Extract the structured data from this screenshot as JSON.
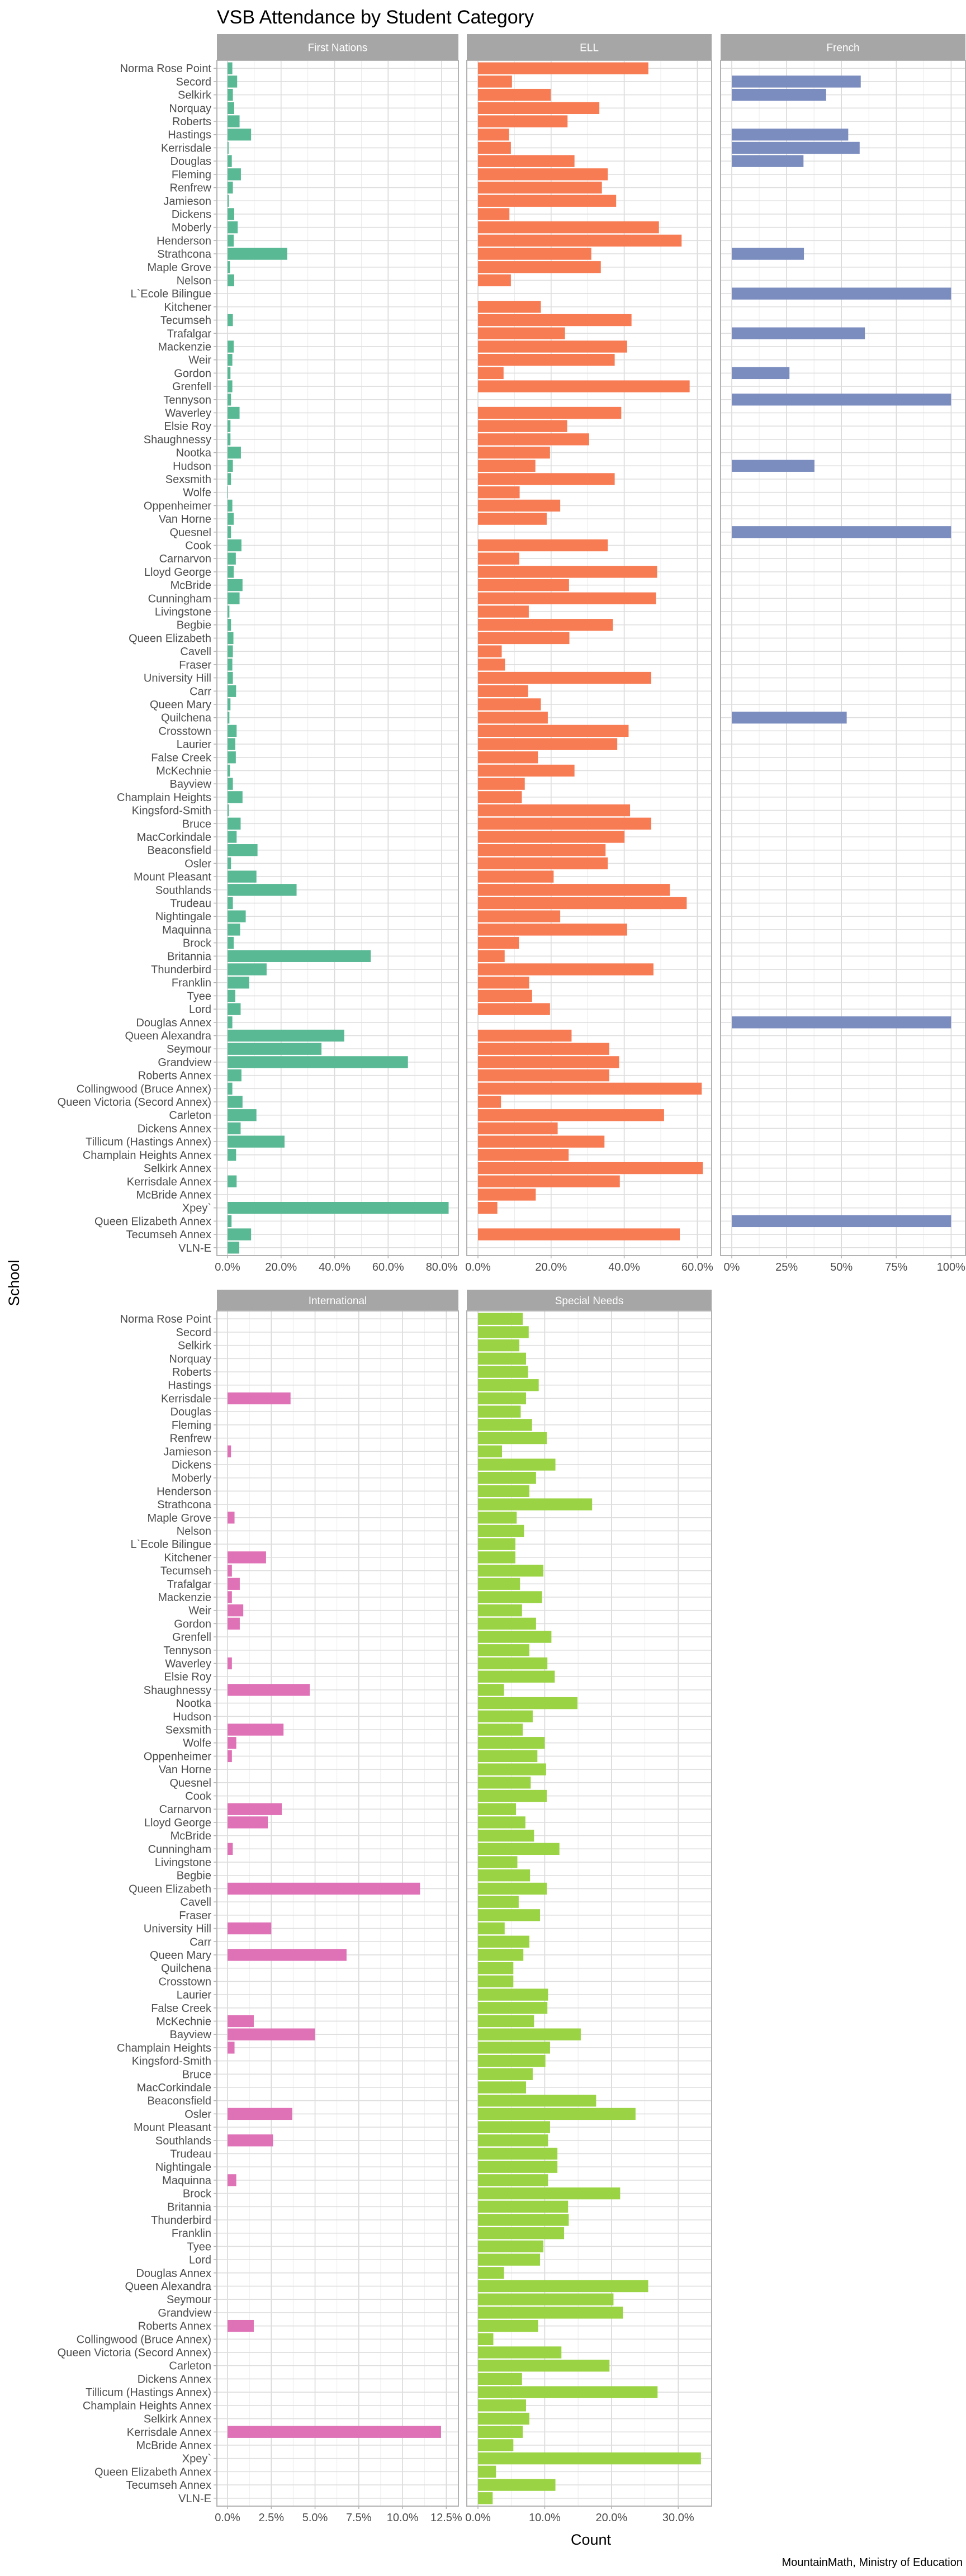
{
  "chart_data": {
    "type": "bar",
    "orientation": "horizontal",
    "title": "VSB Attendance by Student Category",
    "xlabel": "Count",
    "ylabel": "School",
    "caption": "MountainMath, Ministry of Education",
    "grid": true,
    "facet_layout": "3 columns, 2 rows",
    "categories": [
      "Norma Rose Point",
      "Secord",
      "Selkirk",
      "Norquay",
      "Roberts",
      "Hastings",
      "Kerrisdale",
      "Douglas",
      "Fleming",
      "Renfrew",
      "Jamieson",
      "Dickens",
      "Moberly",
      "Henderson",
      "Strathcona",
      "Maple Grove",
      "Nelson",
      "L`Ecole Bilingue",
      "Kitchener",
      "Tecumseh",
      "Trafalgar",
      "Mackenzie",
      "Weir",
      "Gordon",
      "Grenfell",
      "Tennyson",
      "Waverley",
      "Elsie Roy",
      "Shaughnessy",
      "Nootka",
      "Hudson",
      "Sexsmith",
      "Wolfe",
      "Oppenheimer",
      "Van Horne",
      "Quesnel",
      "Cook",
      "Carnarvon",
      "Lloyd George",
      "McBride",
      "Cunningham",
      "Livingstone",
      "Begbie",
      "Queen Elizabeth",
      "Cavell",
      "Fraser",
      "University Hill",
      "Carr",
      "Queen Mary",
      "Quilchena",
      "Crosstown",
      "Laurier",
      "False Creek",
      "McKechnie",
      "Bayview",
      "Champlain Heights",
      "Kingsford-Smith",
      "Bruce",
      "MacCorkindale",
      "Beaconsfield",
      "Osler",
      "Mount Pleasant",
      "Southlands",
      "Trudeau",
      "Nightingale",
      "Maquinna",
      "Brock",
      "Britannia",
      "Thunderbird",
      "Franklin",
      "Tyee",
      "Lord",
      "Douglas Annex",
      "Queen Alexandra",
      "Seymour",
      "Grandview",
      "Roberts Annex",
      "Collingwood (Bruce Annex)",
      "Queen Victoria (Secord Annex)",
      "Carleton",
      "Dickens Annex",
      "Tillicum (Hastings Annex)",
      "Champlain Heights Annex",
      "Selkirk Annex",
      "Kerrisdale Annex",
      "McBride Annex",
      "Xpey`",
      "Queen Elizabeth Annex",
      "Tecumseh Annex",
      "VLN-E"
    ],
    "series": [
      {
        "name": "First Nations",
        "color": "#5ab995",
        "xlim": [
          0,
          0.85
        ],
        "tick_values": [
          0,
          0.2,
          0.4,
          0.6,
          0.8
        ],
        "tick_labels": [
          "0.0%",
          "20.0%",
          "40.0%",
          "60.0%",
          "80.0%"
        ],
        "values": [
          0.018,
          0.036,
          0.02,
          0.025,
          0.045,
          0.088,
          0.004,
          0.016,
          0.05,
          0.02,
          0.005,
          0.025,
          0.038,
          0.023,
          0.223,
          0.009,
          0.025,
          0,
          0,
          0.02,
          0,
          0.023,
          0.018,
          0.011,
          0.018,
          0.013,
          0.045,
          0.011,
          0.011,
          0.05,
          0.02,
          0.013,
          0.002,
          0.018,
          0.023,
          0.013,
          0.052,
          0.031,
          0.023,
          0.056,
          0.045,
          0.007,
          0.013,
          0.022,
          0.02,
          0.018,
          0.02,
          0.032,
          0.011,
          0.007,
          0.034,
          0.029,
          0.031,
          0.009,
          0.02,
          0.056,
          0.005,
          0.049,
          0.034,
          0.112,
          0.013,
          0.108,
          0.258,
          0.02,
          0.068,
          0.047,
          0.023,
          0.535,
          0.146,
          0.081,
          0.029,
          0.049,
          0.018,
          0.436,
          0.351,
          0.674,
          0.052,
          0.018,
          0.056,
          0.108,
          0.049,
          0.213,
          0.032,
          0,
          0.034,
          0,
          0.826,
          0.015,
          0.088,
          0.044
        ]
      },
      {
        "name": "ELL",
        "color": "#f77b53",
        "xlim": [
          0,
          0.63
        ],
        "tick_values": [
          0,
          0.2,
          0.4,
          0.6
        ],
        "tick_labels": [
          "0.0%",
          "20.0%",
          "40.0%",
          "60.0%"
        ],
        "values": [
          0.466,
          0.093,
          0.199,
          0.332,
          0.245,
          0.085,
          0.09,
          0.264,
          0.355,
          0.339,
          0.378,
          0.086,
          0.495,
          0.557,
          0.31,
          0.336,
          0.09,
          0,
          0.172,
          0.42,
          0.238,
          0.408,
          0.374,
          0.07,
          0.579,
          0,
          0.392,
          0.244,
          0.304,
          0.197,
          0.157,
          0.374,
          0.114,
          0.225,
          0.188,
          0,
          0.355,
          0.113,
          0.49,
          0.249,
          0.487,
          0.139,
          0.369,
          0.25,
          0.065,
          0.074,
          0.474,
          0.137,
          0.172,
          0.191,
          0.412,
          0.381,
          0.164,
          0.264,
          0.128,
          0.12,
          0.416,
          0.474,
          0.401,
          0.349,
          0.355,
          0.207,
          0.525,
          0.571,
          0.225,
          0.408,
          0.112,
          0.073,
          0.48,
          0.14,
          0.148,
          0.197,
          0,
          0.256,
          0.359,
          0.386,
          0.359,
          0.612,
          0.063,
          0.509,
          0.218,
          0.346,
          0.248,
          0.615,
          0.388,
          0.158,
          0.053,
          0,
          0.552,
          0
        ]
      },
      {
        "name": "French",
        "color": "#7b8dbf",
        "xlim": [
          0,
          1.05
        ],
        "tick_values": [
          0,
          0.25,
          0.5,
          0.75,
          1.0
        ],
        "tick_labels": [
          "0%",
          "25%",
          "50%",
          "75%",
          "100%"
        ],
        "values": [
          0,
          0.588,
          0.43,
          0,
          0,
          0.531,
          0.583,
          0.327,
          0,
          0,
          0,
          0,
          0,
          0,
          0.329,
          0,
          0,
          1.0,
          0,
          0,
          0.607,
          0,
          0,
          0.263,
          0,
          1.0,
          0,
          0,
          0,
          0,
          0.377,
          0,
          0,
          0,
          0,
          1.0,
          0,
          0,
          0,
          0,
          0,
          0,
          0,
          0,
          0,
          0,
          0,
          0,
          0,
          0.524,
          0,
          0,
          0,
          0,
          0,
          0,
          0,
          0,
          0,
          0,
          0,
          0,
          0,
          0,
          0,
          0,
          0,
          0,
          0,
          0,
          0,
          0,
          1.0,
          0,
          0,
          0,
          0,
          0,
          0,
          0,
          0,
          0,
          0,
          0,
          0,
          0,
          0,
          1.0,
          0,
          0
        ]
      },
      {
        "name": "International",
        "color": "#df72b6",
        "xlim": [
          0,
          0.13
        ],
        "tick_values": [
          0,
          0.025,
          0.05,
          0.075,
          0.1,
          0.125
        ],
        "tick_labels": [
          "0.0%",
          "2.5%",
          "5.0%",
          "7.5%",
          "10.0%",
          "12.5%"
        ],
        "values": [
          0,
          0,
          0,
          0,
          0,
          0,
          0.036,
          0,
          0,
          0,
          0.002,
          0,
          0,
          0,
          0,
          0.004,
          0,
          0,
          0.022,
          0.0025,
          0.007,
          0.0025,
          0.009,
          0.007,
          0,
          0,
          0.0025,
          0,
          0.047,
          0,
          0,
          0.032,
          0.005,
          0.0025,
          0,
          0,
          0,
          0.031,
          0.023,
          0,
          0.003,
          0,
          0,
          0.11,
          0,
          0,
          0.025,
          0,
          0.068,
          0,
          0,
          0,
          0,
          0.015,
          0.05,
          0.004,
          0,
          0,
          0,
          0,
          0.037,
          0,
          0.026,
          0,
          0,
          0.005,
          0,
          0,
          0,
          0,
          0,
          0,
          0,
          0,
          0,
          0,
          0.015,
          0,
          0,
          0,
          0,
          0,
          0,
          0,
          0.122,
          0,
          0,
          0,
          0,
          0
        ]
      },
      {
        "name": "Special Needs",
        "color": "#9ad444",
        "xlim": [
          0,
          0.345
        ],
        "tick_values": [
          0,
          0.1,
          0.2,
          0.3
        ],
        "tick_labels": [
          "0.0%",
          "10.0%",
          "20.0%",
          "30.0%"
        ],
        "values": [
          0.067,
          0.076,
          0.062,
          0.072,
          0.075,
          0.091,
          0.072,
          0.064,
          0.081,
          0.103,
          0.036,
          0.116,
          0.087,
          0.077,
          0.171,
          0.058,
          0.069,
          0.056,
          0.056,
          0.098,
          0.063,
          0.096,
          0.066,
          0.087,
          0.11,
          0.077,
          0.104,
          0.115,
          0.039,
          0.149,
          0.082,
          0.067,
          0.1,
          0.089,
          0.102,
          0.079,
          0.103,
          0.057,
          0.071,
          0.084,
          0.122,
          0.059,
          0.078,
          0.103,
          0.061,
          0.093,
          0.04,
          0.077,
          0.068,
          0.053,
          0.053,
          0.105,
          0.104,
          0.084,
          0.154,
          0.108,
          0.101,
          0.082,
          0.072,
          0.177,
          0.236,
          0.108,
          0.105,
          0.119,
          0.119,
          0.105,
          0.213,
          0.135,
          0.136,
          0.129,
          0.098,
          0.093,
          0.039,
          0.255,
          0.203,
          0.217,
          0.09,
          0.023,
          0.125,
          0.197,
          0.066,
          0.269,
          0.072,
          0.077,
          0.067,
          0.053,
          0.334,
          0.027,
          0.116,
          0.022
        ]
      }
    ]
  }
}
